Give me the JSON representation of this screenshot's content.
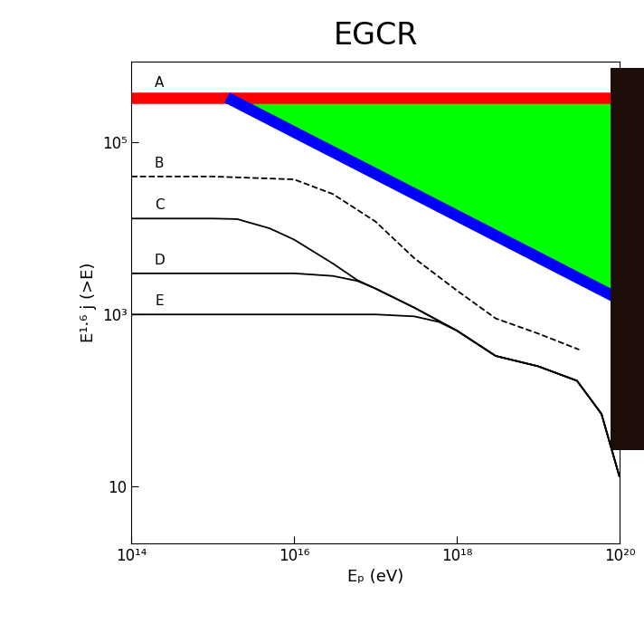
{
  "chart_data": {
    "type": "line",
    "title": "EGCR",
    "x_label": "Eₚ (eV)",
    "y_label": "E¹·⁶ j (>E)",
    "log": true,
    "xlim": [
      100000000000000.0,
      1e+20
    ],
    "ylim": [
      2.2,
      860000
    ],
    "xticks": [
      {
        "value": 100000000000000.0,
        "label": "10¹⁴"
      },
      {
        "value": 1e+16,
        "label": "10¹⁶"
      },
      {
        "value": 1e+18,
        "label": "10¹⁸"
      },
      {
        "value": 1e+20,
        "label": "10²⁰"
      }
    ],
    "yticks": [
      10,
      {
        "value": 1000,
        "label": "10³"
      },
      {
        "value": 100000,
        "label": "10⁵"
      }
    ],
    "series": [
      {
        "type": "area",
        "color": "#00ff00",
        "x": [
          1500000000000000.0,
          1e+20
        ],
        "lower": [
          330000,
          1500
        ],
        "upper": [
          330000,
          330000
        ]
      },
      {
        "name": "A",
        "color": "#ff0000",
        "line_style": "solid",
        "x": [
          100000000000000.0,
          1e+20
        ],
        "values": [
          330000,
          330000
        ]
      },
      {
        "color": "#0000ff",
        "line_style": "solid",
        "x": [
          1500000000000000.0,
          1e+20
        ],
        "values": [
          330000,
          1500
        ]
      },
      {
        "name": "B",
        "color": "#000000",
        "line_style": "dashed",
        "x": [
          100000000000000.0,
          1000000000000000.0,
          1e+16,
          3e+16,
          1e+17,
          3e+17,
          1e+18,
          3e+18,
          1e+19,
          3.2e+19
        ],
        "values": [
          40000,
          40000,
          37000,
          25000,
          12000,
          4500,
          1900,
          900,
          600,
          390
        ]
      },
      {
        "name": "C",
        "color": "#000000",
        "line_style": "solid",
        "x": [
          100000000000000.0,
          1000000000000000.0,
          2000000000000000.0,
          5000000000000000.0,
          1e+16,
          3e+16,
          6e+16,
          1e+17,
          3e+17,
          1e+18,
          3e+18,
          1e+19,
          3e+19,
          6e+19,
          1e+20
        ],
        "values": [
          13000,
          13000,
          12800,
          10000,
          7400,
          3900,
          2500,
          2000,
          1200,
          650,
          330,
          250,
          170,
          70,
          13
        ]
      },
      {
        "name": "D",
        "color": "#000000",
        "line_style": "solid",
        "x": [
          100000000000000.0,
          1e+16,
          3e+16,
          6e+16,
          1e+17,
          3e+17,
          1e+18,
          3e+18,
          1e+19,
          3e+19,
          6e+19,
          1e+20
        ],
        "values": [
          3000,
          3000,
          2800,
          2450,
          2000,
          1200,
          650,
          330,
          250,
          170,
          70,
          13
        ]
      },
      {
        "name": "E",
        "color": "#000000",
        "line_style": "solid",
        "x": [
          100000000000000.0,
          1e+17,
          3e+17,
          6e+17,
          1e+18,
          3e+18,
          1e+19,
          3e+19,
          6e+19,
          1e+20
        ],
        "values": [
          1000,
          1000,
          950,
          820,
          650,
          330,
          250,
          170,
          70,
          13
        ]
      }
    ]
  }
}
